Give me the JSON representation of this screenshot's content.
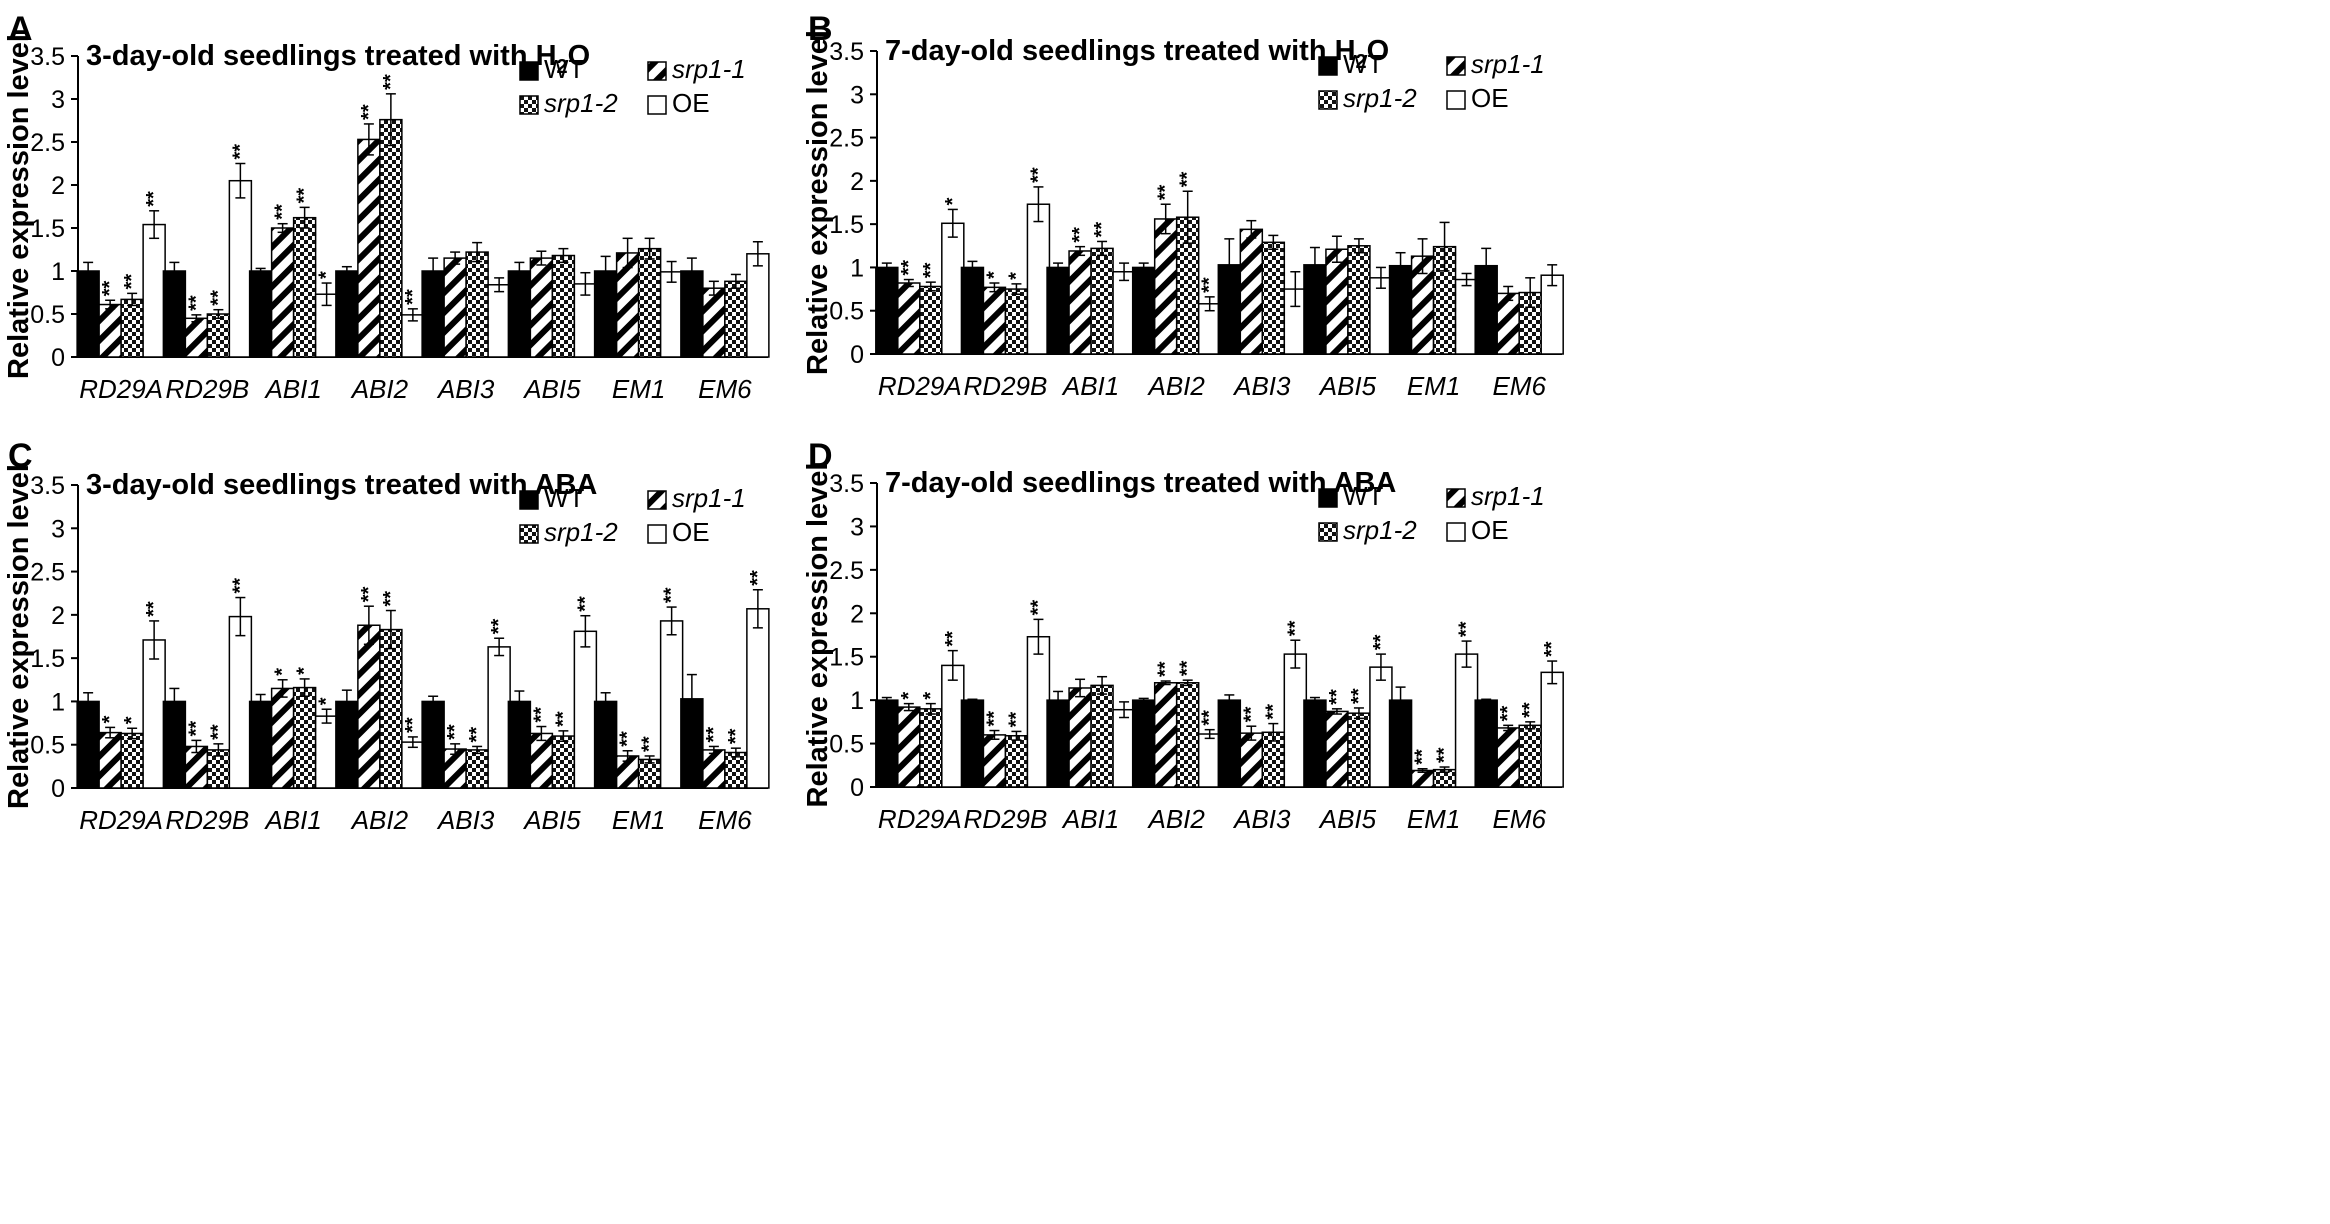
{
  "figure": {
    "width": 2330,
    "height": 1224
  },
  "legend_items": [
    {
      "name": "WT",
      "italic": false,
      "pattern": "solid"
    },
    {
      "name": "srp1-1",
      "italic": true,
      "pattern": "diag"
    },
    {
      "name": "srp1-2",
      "italic": true,
      "pattern": "check"
    },
    {
      "name": "OE",
      "italic": false,
      "pattern": "open"
    }
  ],
  "chart_data": [
    {
      "panel": "A",
      "type": "bar",
      "title": "3-day-old seedlings treated with H",
      "title_sub": "2",
      "title_tail": "O",
      "xlabel": "",
      "ylabel": "Relative expression level",
      "ylim": [
        0,
        3.5
      ],
      "yticks": [
        "0",
        "0.5",
        "1",
        "1.5",
        "2",
        "2.5",
        "3",
        "3.5"
      ],
      "categories": [
        "RD29A",
        "RD29B",
        "ABI1",
        "ABI2",
        "ABI3",
        "ABI5",
        "EM1",
        "EM6"
      ],
      "series": [
        {
          "name": "WT",
          "values": [
            1.0,
            1.0,
            1.0,
            1.0,
            1.0,
            1.0,
            1.0,
            1.0
          ],
          "errors": [
            0.1,
            0.1,
            0.03,
            0.05,
            0.15,
            0.1,
            0.17,
            0.15
          ],
          "marks": [
            "",
            "",
            "",
            "",
            "",
            "",
            "",
            ""
          ]
        },
        {
          "name": "srp1-1",
          "values": [
            0.61,
            0.45,
            1.5,
            2.53,
            1.15,
            1.15,
            1.21,
            0.8
          ],
          "errors": [
            0.05,
            0.04,
            0.05,
            0.18,
            0.07,
            0.08,
            0.17,
            0.08
          ],
          "marks": [
            "**",
            "**",
            "**",
            "**",
            "",
            "",
            "",
            ""
          ]
        },
        {
          "name": "srp1-2",
          "values": [
            0.67,
            0.5,
            1.62,
            2.76,
            1.22,
            1.18,
            1.26,
            0.88
          ],
          "errors": [
            0.07,
            0.05,
            0.12,
            0.3,
            0.11,
            0.08,
            0.12,
            0.08
          ],
          "marks": [
            "**",
            "**",
            "**",
            "**",
            "",
            "",
            "",
            ""
          ]
        },
        {
          "name": "OE",
          "values": [
            1.54,
            2.05,
            0.73,
            0.49,
            0.84,
            0.85,
            0.99,
            1.2
          ],
          "errors": [
            0.16,
            0.2,
            0.13,
            0.07,
            0.08,
            0.13,
            0.12,
            0.14
          ],
          "marks": [
            "**",
            "**",
            "*",
            "**",
            "",
            "",
            "",
            ""
          ]
        }
      ]
    },
    {
      "panel": "B",
      "type": "bar",
      "title": "7-day-old seedlings treated with H",
      "title_sub": "2",
      "title_tail": "O",
      "xlabel": "",
      "ylabel": "Relative expression level",
      "ylim": [
        0,
        3.5
      ],
      "yticks": [
        "0",
        "0.5",
        "1",
        "1.5",
        "2",
        "2.5",
        "3",
        "3.5"
      ],
      "categories": [
        "RD29A",
        "RD29B",
        "ABI1",
        "ABI2",
        "ABI3",
        "ABI5",
        "EM1",
        "EM6"
      ],
      "series": [
        {
          "name": "WT",
          "values": [
            1.0,
            1.0,
            1.0,
            1.0,
            1.03,
            1.03,
            1.02,
            1.02
          ],
          "errors": [
            0.05,
            0.07,
            0.05,
            0.05,
            0.3,
            0.2,
            0.15,
            0.2
          ],
          "marks": [
            "",
            "",
            "",
            "",
            "",
            "",
            "",
            ""
          ]
        },
        {
          "name": "srp1-1",
          "values": [
            0.82,
            0.77,
            1.19,
            1.56,
            1.44,
            1.21,
            1.13,
            0.7
          ],
          "errors": [
            0.04,
            0.05,
            0.05,
            0.17,
            0.1,
            0.15,
            0.2,
            0.08
          ],
          "marks": [
            "**",
            "*",
            "**",
            "**",
            "",
            "",
            "",
            ""
          ]
        },
        {
          "name": "srp1-2",
          "values": [
            0.78,
            0.75,
            1.22,
            1.58,
            1.29,
            1.25,
            1.24,
            0.71
          ],
          "errors": [
            0.05,
            0.06,
            0.08,
            0.3,
            0.08,
            0.08,
            0.28,
            0.17
          ],
          "marks": [
            "**",
            "*",
            "**",
            "**",
            "",
            "",
            "",
            ""
          ]
        },
        {
          "name": "OE",
          "values": [
            1.51,
            1.73,
            0.95,
            0.58,
            0.75,
            0.88,
            0.86,
            0.91
          ],
          "errors": [
            0.16,
            0.2,
            0.1,
            0.08,
            0.2,
            0.12,
            0.07,
            0.12
          ],
          "marks": [
            "*",
            "**",
            "",
            "**",
            "",
            "",
            "",
            ""
          ]
        }
      ]
    },
    {
      "panel": "C",
      "type": "bar",
      "title": "3-day-old seedlings treated with ABA",
      "title_sub": "",
      "title_tail": "",
      "xlabel": "",
      "ylabel": "Relative expression level",
      "ylim": [
        0,
        3.5
      ],
      "yticks": [
        "0",
        "0.5",
        "1",
        "1.5",
        "2",
        "2.5",
        "3",
        "3.5"
      ],
      "categories": [
        "RD29A",
        "RD29B",
        "ABI1",
        "ABI2",
        "ABI3",
        "ABI5",
        "EM1",
        "EM6"
      ],
      "series": [
        {
          "name": "WT",
          "values": [
            1.0,
            1.0,
            1.0,
            1.0,
            1.0,
            1.0,
            1.0,
            1.03
          ],
          "errors": [
            0.1,
            0.15,
            0.08,
            0.13,
            0.06,
            0.12,
            0.1,
            0.28
          ],
          "marks": [
            "",
            "",
            "",
            "",
            "",
            "",
            "",
            ""
          ]
        },
        {
          "name": "srp1-1",
          "values": [
            0.64,
            0.48,
            1.15,
            1.88,
            0.45,
            0.63,
            0.37,
            0.44
          ],
          "errors": [
            0.06,
            0.07,
            0.1,
            0.22,
            0.06,
            0.08,
            0.06,
            0.04
          ],
          "marks": [
            "*",
            "**",
            "*",
            "**",
            "**",
            "**",
            "**",
            "**"
          ]
        },
        {
          "name": "srp1-2",
          "values": [
            0.63,
            0.44,
            1.16,
            1.83,
            0.44,
            0.6,
            0.33,
            0.41
          ],
          "errors": [
            0.06,
            0.07,
            0.1,
            0.22,
            0.04,
            0.06,
            0.04,
            0.05
          ],
          "marks": [
            "*",
            "**",
            "*",
            "**",
            "**",
            "**",
            "**",
            "**"
          ]
        },
        {
          "name": "OE",
          "values": [
            1.71,
            1.98,
            0.83,
            0.53,
            1.63,
            1.81,
            1.93,
            2.07
          ],
          "errors": [
            0.22,
            0.22,
            0.08,
            0.06,
            0.1,
            0.18,
            0.16,
            0.22
          ],
          "marks": [
            "**",
            "**",
            "*",
            "**",
            "**",
            "**",
            "**",
            "**"
          ]
        }
      ]
    },
    {
      "panel": "D",
      "type": "bar",
      "title": "7-day-old seedlings treated with ABA",
      "title_sub": "",
      "title_tail": "",
      "xlabel": "",
      "ylabel": "Relative expression level",
      "ylim": [
        0,
        3.5
      ],
      "yticks": [
        "0",
        "0.5",
        "1",
        "1.5",
        "2",
        "2.5",
        "3",
        "3.5"
      ],
      "categories": [
        "RD29A",
        "RD29B",
        "ABI1",
        "ABI2",
        "ABI3",
        "ABI5",
        "EM1",
        "EM6"
      ],
      "series": [
        {
          "name": "WT",
          "values": [
            1.0,
            1.0,
            1.0,
            1.0,
            1.0,
            1.0,
            1.0,
            1.0
          ],
          "errors": [
            0.03,
            0.01,
            0.1,
            0.02,
            0.06,
            0.03,
            0.15,
            0.01
          ],
          "marks": [
            "",
            "",
            "",
            "",
            "",
            "",
            "",
            ""
          ]
        },
        {
          "name": "srp1-1",
          "values": [
            0.92,
            0.6,
            1.14,
            1.2,
            0.62,
            0.87,
            0.19,
            0.68
          ],
          "errors": [
            0.04,
            0.05,
            0.1,
            0.02,
            0.08,
            0.03,
            0.02,
            0.03
          ],
          "marks": [
            "*",
            "**",
            "",
            "**",
            "**",
            "**",
            "**",
            "**"
          ]
        },
        {
          "name": "srp1-2",
          "values": [
            0.9,
            0.59,
            1.17,
            1.2,
            0.63,
            0.85,
            0.2,
            0.71
          ],
          "errors": [
            0.06,
            0.05,
            0.1,
            0.03,
            0.1,
            0.06,
            0.03,
            0.04
          ],
          "marks": [
            "*",
            "**",
            "",
            "**",
            "**",
            "**",
            "**",
            "**"
          ]
        },
        {
          "name": "OE",
          "values": [
            1.4,
            1.73,
            0.89,
            0.61,
            1.53,
            1.38,
            1.53,
            1.32
          ],
          "errors": [
            0.17,
            0.2,
            0.09,
            0.05,
            0.16,
            0.15,
            0.15,
            0.13
          ],
          "marks": [
            "**",
            "**",
            "",
            "**",
            "**",
            "**",
            "**",
            "**"
          ]
        }
      ]
    }
  ]
}
